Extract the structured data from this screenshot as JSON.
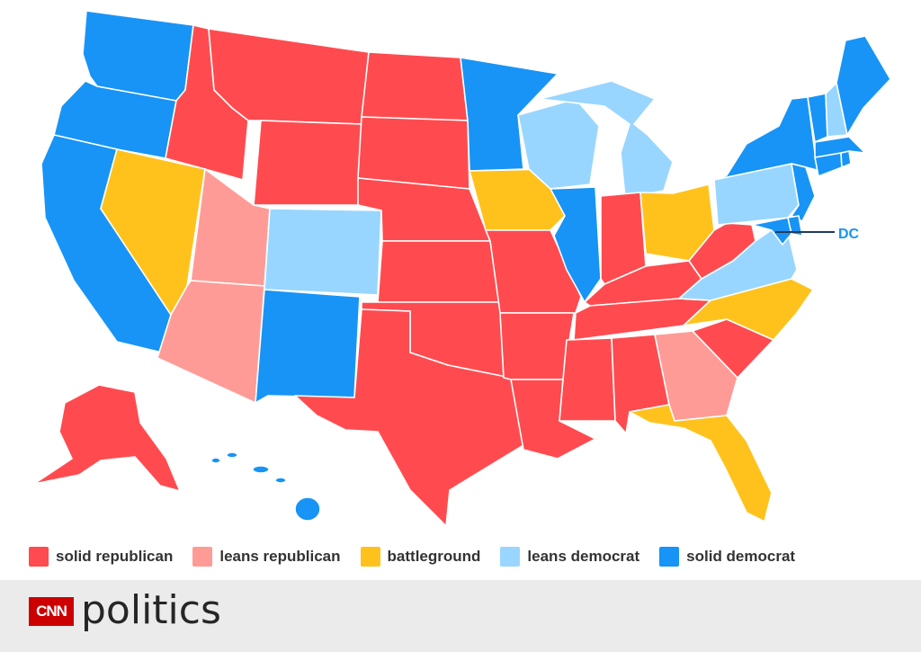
{
  "map": {
    "dc_label": "DC"
  },
  "colors": {
    "solid_republican": "#ff4b4f",
    "leans_republican": "#ff9b96",
    "battleground": "#ffc21d",
    "leans_democrat": "#98d6ff",
    "solid_democrat": "#1794f6"
  },
  "states": {
    "WA": "solid_democrat",
    "OR": "solid_democrat",
    "CA": "solid_democrat",
    "NV": "battleground",
    "ID": "solid_republican",
    "MT": "solid_republican",
    "WY": "solid_republican",
    "UT": "leans_republican",
    "AZ": "leans_republican",
    "CO": "leans_democrat",
    "NM": "solid_democrat",
    "ND": "solid_republican",
    "SD": "solid_republican",
    "NE": "solid_republican",
    "KS": "solid_republican",
    "OK": "solid_republican",
    "TX": "solid_republican",
    "MN": "solid_democrat",
    "IA": "battleground",
    "MO": "solid_republican",
    "AR": "solid_republican",
    "LA": "solid_republican",
    "WI": "leans_democrat",
    "IL": "solid_democrat",
    "MI": "leans_democrat",
    "IN": "solid_republican",
    "OH": "battleground",
    "KY": "solid_republican",
    "TN": "solid_republican",
    "MS": "solid_republican",
    "AL": "solid_republican",
    "GA": "leans_republican",
    "FL": "battleground",
    "SC": "solid_republican",
    "NC": "battleground",
    "VA": "leans_democrat",
    "WV": "solid_republican",
    "PA": "leans_democrat",
    "NY": "solid_democrat",
    "VT": "solid_democrat",
    "NH": "leans_democrat",
    "ME": "solid_democrat",
    "MA": "solid_democrat",
    "CT": "solid_democrat",
    "RI": "solid_democrat",
    "NJ": "solid_democrat",
    "DE": "solid_democrat",
    "MD": "solid_democrat",
    "AK": "solid_republican",
    "HI": "solid_democrat"
  },
  "legend": [
    {
      "key": "solid_republican",
      "label": "solid republican"
    },
    {
      "key": "leans_republican",
      "label": "leans republican"
    },
    {
      "key": "battleground",
      "label": "battleground"
    },
    {
      "key": "leans_democrat",
      "label": "leans democrat"
    },
    {
      "key": "solid_democrat",
      "label": "solid democrat"
    }
  ],
  "footer": {
    "logo_text": "CNN",
    "section": "politics"
  }
}
